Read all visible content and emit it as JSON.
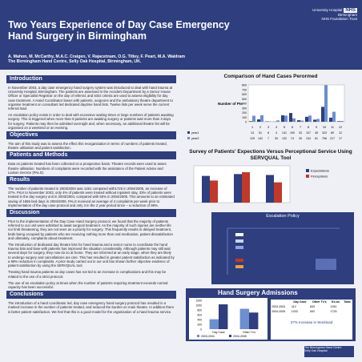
{
  "title_line1": "Two Years Experience of Day Case Emergency",
  "title_line2": "Hand Surgery in Birmingham",
  "logo": {
    "line1": "University Hospital",
    "line2": "Birmingham",
    "nhs": "NHS",
    "line3": "NHS Foundation Trust"
  },
  "authors": "A. Mahon, M. McCarthy, M.A.C. Craigen, V. Rajacetnam, O.G. Titley, F. Peart, M.A. Waldram",
  "affiliation": "The Birmingham Hand Centre, Selly Oak Hospital, Birmingham, UK.",
  "sections": {
    "introduction": {
      "heading": "Introduction",
      "p1": "In November 2003, a day case emergency hand surgery system was introduced to deal with hand trauma at University Hospital, Birmingham. The patients are assessed in the Accident Department by a Senior House Officer or Specialist Registrar on the day of referral, and strict criteria are used to assess eligibility for day case treatment. A Hand Coordinator liases with patients, surgeons and the ambulatory theatre department to organise treatment on consultant led dedicated daytime hand lists. Twelve lists per week serve the current referral load.",
      "p2": "An escalation policy exists in order to deal with excessive waiting times or large numbers of patients awaiting surgery. This is triggered when more than 8 patients are awaiting surgery or patients wait more than 3 days for surgery. Patients may then be admitted overnight and, when necessary, an additional theatre list will be organised on a weekend or an evening."
    },
    "objectives": {
      "heading": "Objectives",
      "p1": "The aim of this study was to assess the effect this reorganisation in terms of numbers of patients treated, theatre utilisation and patient satisfaction."
    },
    "methods": {
      "heading": "Patients and Methods",
      "p1": "Data on patients treated has been collected on a prospective basis. Theatre records were used to asses theatre utilisation. Numbers of complaints were recorded with the assistance of the Patient Advice and Liaison Service (PALS)."
    },
    "results": {
      "heading": "Results",
      "p1": "The number of patients treated in 2003/2004 was 1261 compared with1725 in 2004/2005, an increase of 37%. Prior to November 2003, only 4% of patients were treated without inpatient stay, 33% of patients were treated in the day surgery unit in 2003/2004, compared with 60% in 2004/2005. This amounts to an estimated saving of 1656 bed days in 2004/2005. PALS received an average of 4 complaints per week prior to implementation of the day case protocol and only 3 in the 2 year period since – a reduction of 99%."
    },
    "discussion": {
      "heading": "Discussion",
      "p1": "Prior to the implementation of the Day Case Hand Surgery protocol, we found that the majority of patients referred to our unit were admitted to await surgical treatment. As the majority of such injuries are neither life nor limb threatening, they are not seen as a priority for surgery. This frequently results in delayed treatment, beds being occupied by patients who are receiving nothing more than oral medication, patient dissatisfaction and ultimately, complaints about treatment.",
      "p2": "The introduction of dedicated day theatre lists for hand trauma and a senior nurse to coordinate the hand trauma lists and liase with patients has improved the situation considerably. Although patients may still wait several days for surgery, they now do so at home. They are informed at an early stage, when they are likely to undergo surgery and cancellations are rare. This has resulted in greater patient satisfaction as indicated by a 99% reduction in complaints. A prior study carried out in our unit has shown further objective evidence of patient satisfaction by using the SERVQUAL tool.",
      "p3": "Treating hand trauma patients as day cases has not led to an increase in complications and this may be related to the use of a strict protocol.",
      "p4": "The use of an escalation policy at times when the number of patients requiring treatment exceeds normal capacity has been successful."
    },
    "conclusions": {
      "heading": "Conclusions",
      "p1": "The introduction of a hand coordinator led, day case emergency hand surgery protocol has resulted in a marked increase in the number of patients treated, and reduced the burden on main theatre. In addition there is better patient satisfaction. We feel that this is a good model for the organisation of a hand trauma service."
    }
  },
  "escalation": {
    "title": "Escalation Policy"
  },
  "hand_admissions": {
    "title": "Hand Surgery Admissions",
    "table_headers": [
      "",
      "Day Case",
      "Other Tx's",
      "Ex-os",
      "Total"
    ],
    "rows": [
      [
        "2003-2004",
        "412",
        "849",
        "1261",
        ""
      ],
      [
        "2004-2005",
        "1033",
        "692",
        "1725",
        ""
      ]
    ],
    "note": "37% Increase in Workload"
  },
  "chart_data": [
    {
      "type": "bar",
      "title": "Comparison of Hand Cases Perormed",
      "ylabel": "Number of Pts",
      "categories": [
        "1",
        "2",
        "3",
        "4",
        "5",
        "6",
        "7",
        "8",
        "9",
        "10",
        "11",
        "12"
      ],
      "series": [
        {
          "name": "year1",
          "values": [
            13,
            51,
            8,
            4,
            141,
            190,
            33,
            107,
            45,
            323,
            89,
            12
          ]
        },
        {
          "name": "year2",
          "values": [
            129,
            142,
            7,
            30,
            132,
            74,
            26,
            134,
            61,
            796,
            217,
            17
          ]
        }
      ],
      "ylim": [
        0,
        800
      ],
      "yticks": [
        "800",
        "700",
        "600",
        "500",
        "400",
        "300",
        "200",
        "100",
        "0"
      ],
      "legend": "left",
      "colors": [
        "#2e3e7e",
        "#6b8fd0"
      ]
    },
    {
      "type": "bar",
      "title": "Survey of Patients' Expections Versus Perceptional Service Using SERVQUAL Tool",
      "series": [
        {
          "name": "Expectations",
          "values": [
            2.9,
            3.1,
            3.0
          ]
        },
        {
          "name": "Perceptions",
          "values": [
            2.4,
            3.3,
            2.2
          ]
        }
      ],
      "categories": [
        "",
        "",
        ""
      ],
      "legend": "top-right",
      "colors": [
        "#2e3e7e",
        "#c0392b"
      ]
    },
    {
      "type": "bar",
      "title": "",
      "categories": [
        "Day Case",
        "Other Tx's"
      ],
      "series": [
        {
          "name": "2003-2004",
          "values": [
            412,
            849
          ]
        },
        {
          "name": "2004-2005",
          "values": [
            1033,
            692
          ]
        }
      ],
      "ylim": [
        0,
        1200
      ],
      "yticks": [
        "1200",
        "1000",
        "800",
        "600",
        "400",
        "200",
        "0"
      ],
      "legend": "bottom",
      "colors": [
        "#6b8fd0",
        "#2e3e7e"
      ]
    }
  ],
  "footer": {
    "line1": "The Birmingham Hand Centre",
    "line2": "Selly Oak Hospital"
  }
}
